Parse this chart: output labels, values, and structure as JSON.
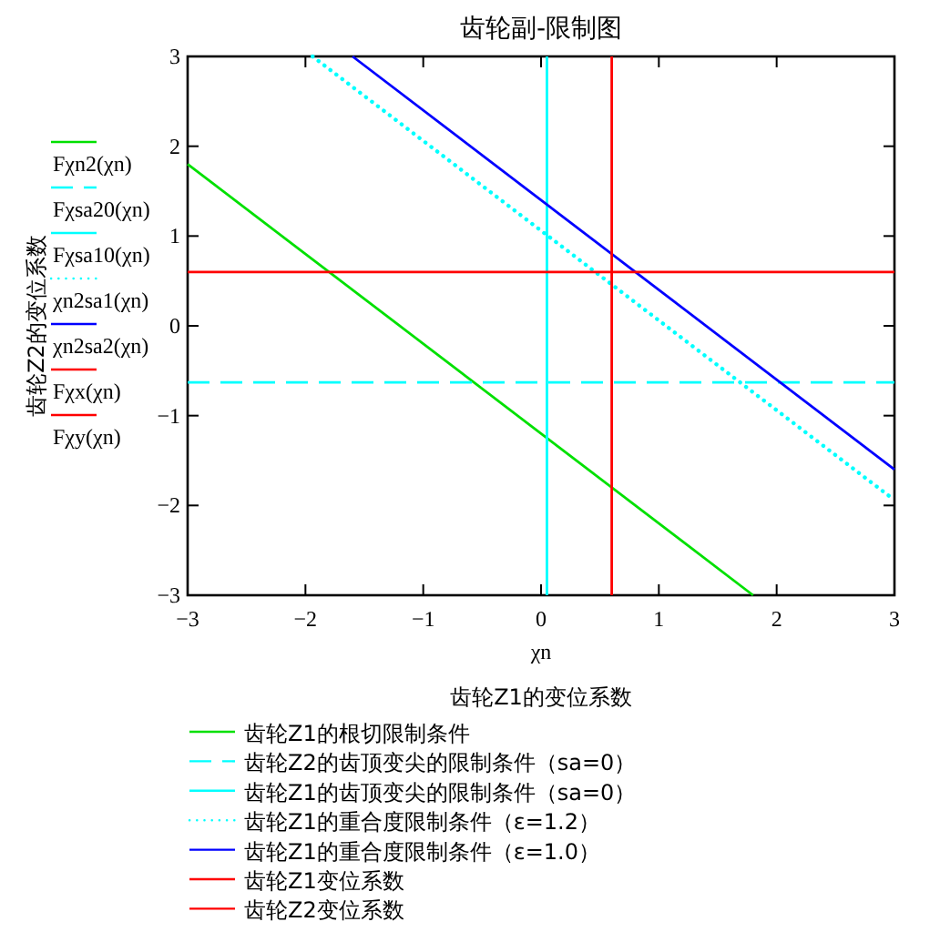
{
  "chart_data": {
    "type": "line",
    "title": "齿轮副-限制图",
    "xlabel": "χn",
    "ylabel": "齿轮Z2的变位系数",
    "xlim": [
      -3,
      3
    ],
    "ylim": [
      -3,
      3
    ],
    "xticks": [
      -3,
      -2,
      -1,
      0,
      1,
      2,
      3
    ],
    "yticks": [
      -3,
      -2,
      -1,
      0,
      1,
      2,
      3
    ],
    "legend": "left",
    "annotations": [
      "齿轮Z1的变位系数",
      "齿轮Z1的根切限制条件",
      "齿轮Z2的齿顶变尖的限制条件（sa=0）",
      "齿轮Z1的齿顶变尖的限制条件（sa=0）",
      "齿轮Z1的重合度限制条件（ε=1.2）",
      "齿轮Z1的重合度限制条件（ε=1.0）",
      "齿轮Z1变位系数",
      "齿轮Z2变位系数"
    ],
    "series": [
      {
        "name": "Fχn2(χn)",
        "color": "#00e000",
        "line_style": "solid",
        "x": [
          -3,
          1.8
        ],
        "values": [
          1.8,
          -3
        ]
      },
      {
        "name": "Fχsa20(χn)",
        "color": "#00ffff",
        "line_style": "dashed",
        "x": [
          -3,
          3
        ],
        "values": [
          -0.63,
          -0.63
        ]
      },
      {
        "name": "Fχsa10(χn)",
        "color": "#00ffff",
        "line_style": "solid",
        "x": [
          0.05,
          0.05
        ],
        "values": [
          -3,
          3
        ]
      },
      {
        "name": "χn2sa1(χn)",
        "color": "#00ffff",
        "line_style": "dotted",
        "x": [
          -1.94,
          3
        ],
        "values": [
          3,
          -1.94
        ]
      },
      {
        "name": "χn2sa2(χn)",
        "color": "#0000ff",
        "line_style": "solid",
        "x": [
          -1.6,
          3
        ],
        "values": [
          3,
          -1.6
        ]
      },
      {
        "name": "Fχx(χn)",
        "color": "#ff0000",
        "line_style": "solid",
        "x": [
          0.6,
          0.6
        ],
        "values": [
          -3,
          3
        ]
      },
      {
        "name": "Fχy(χn)",
        "color": "#ff0000",
        "line_style": "solid",
        "x": [
          -3,
          3
        ],
        "values": [
          0.6,
          0.6
        ]
      }
    ]
  }
}
